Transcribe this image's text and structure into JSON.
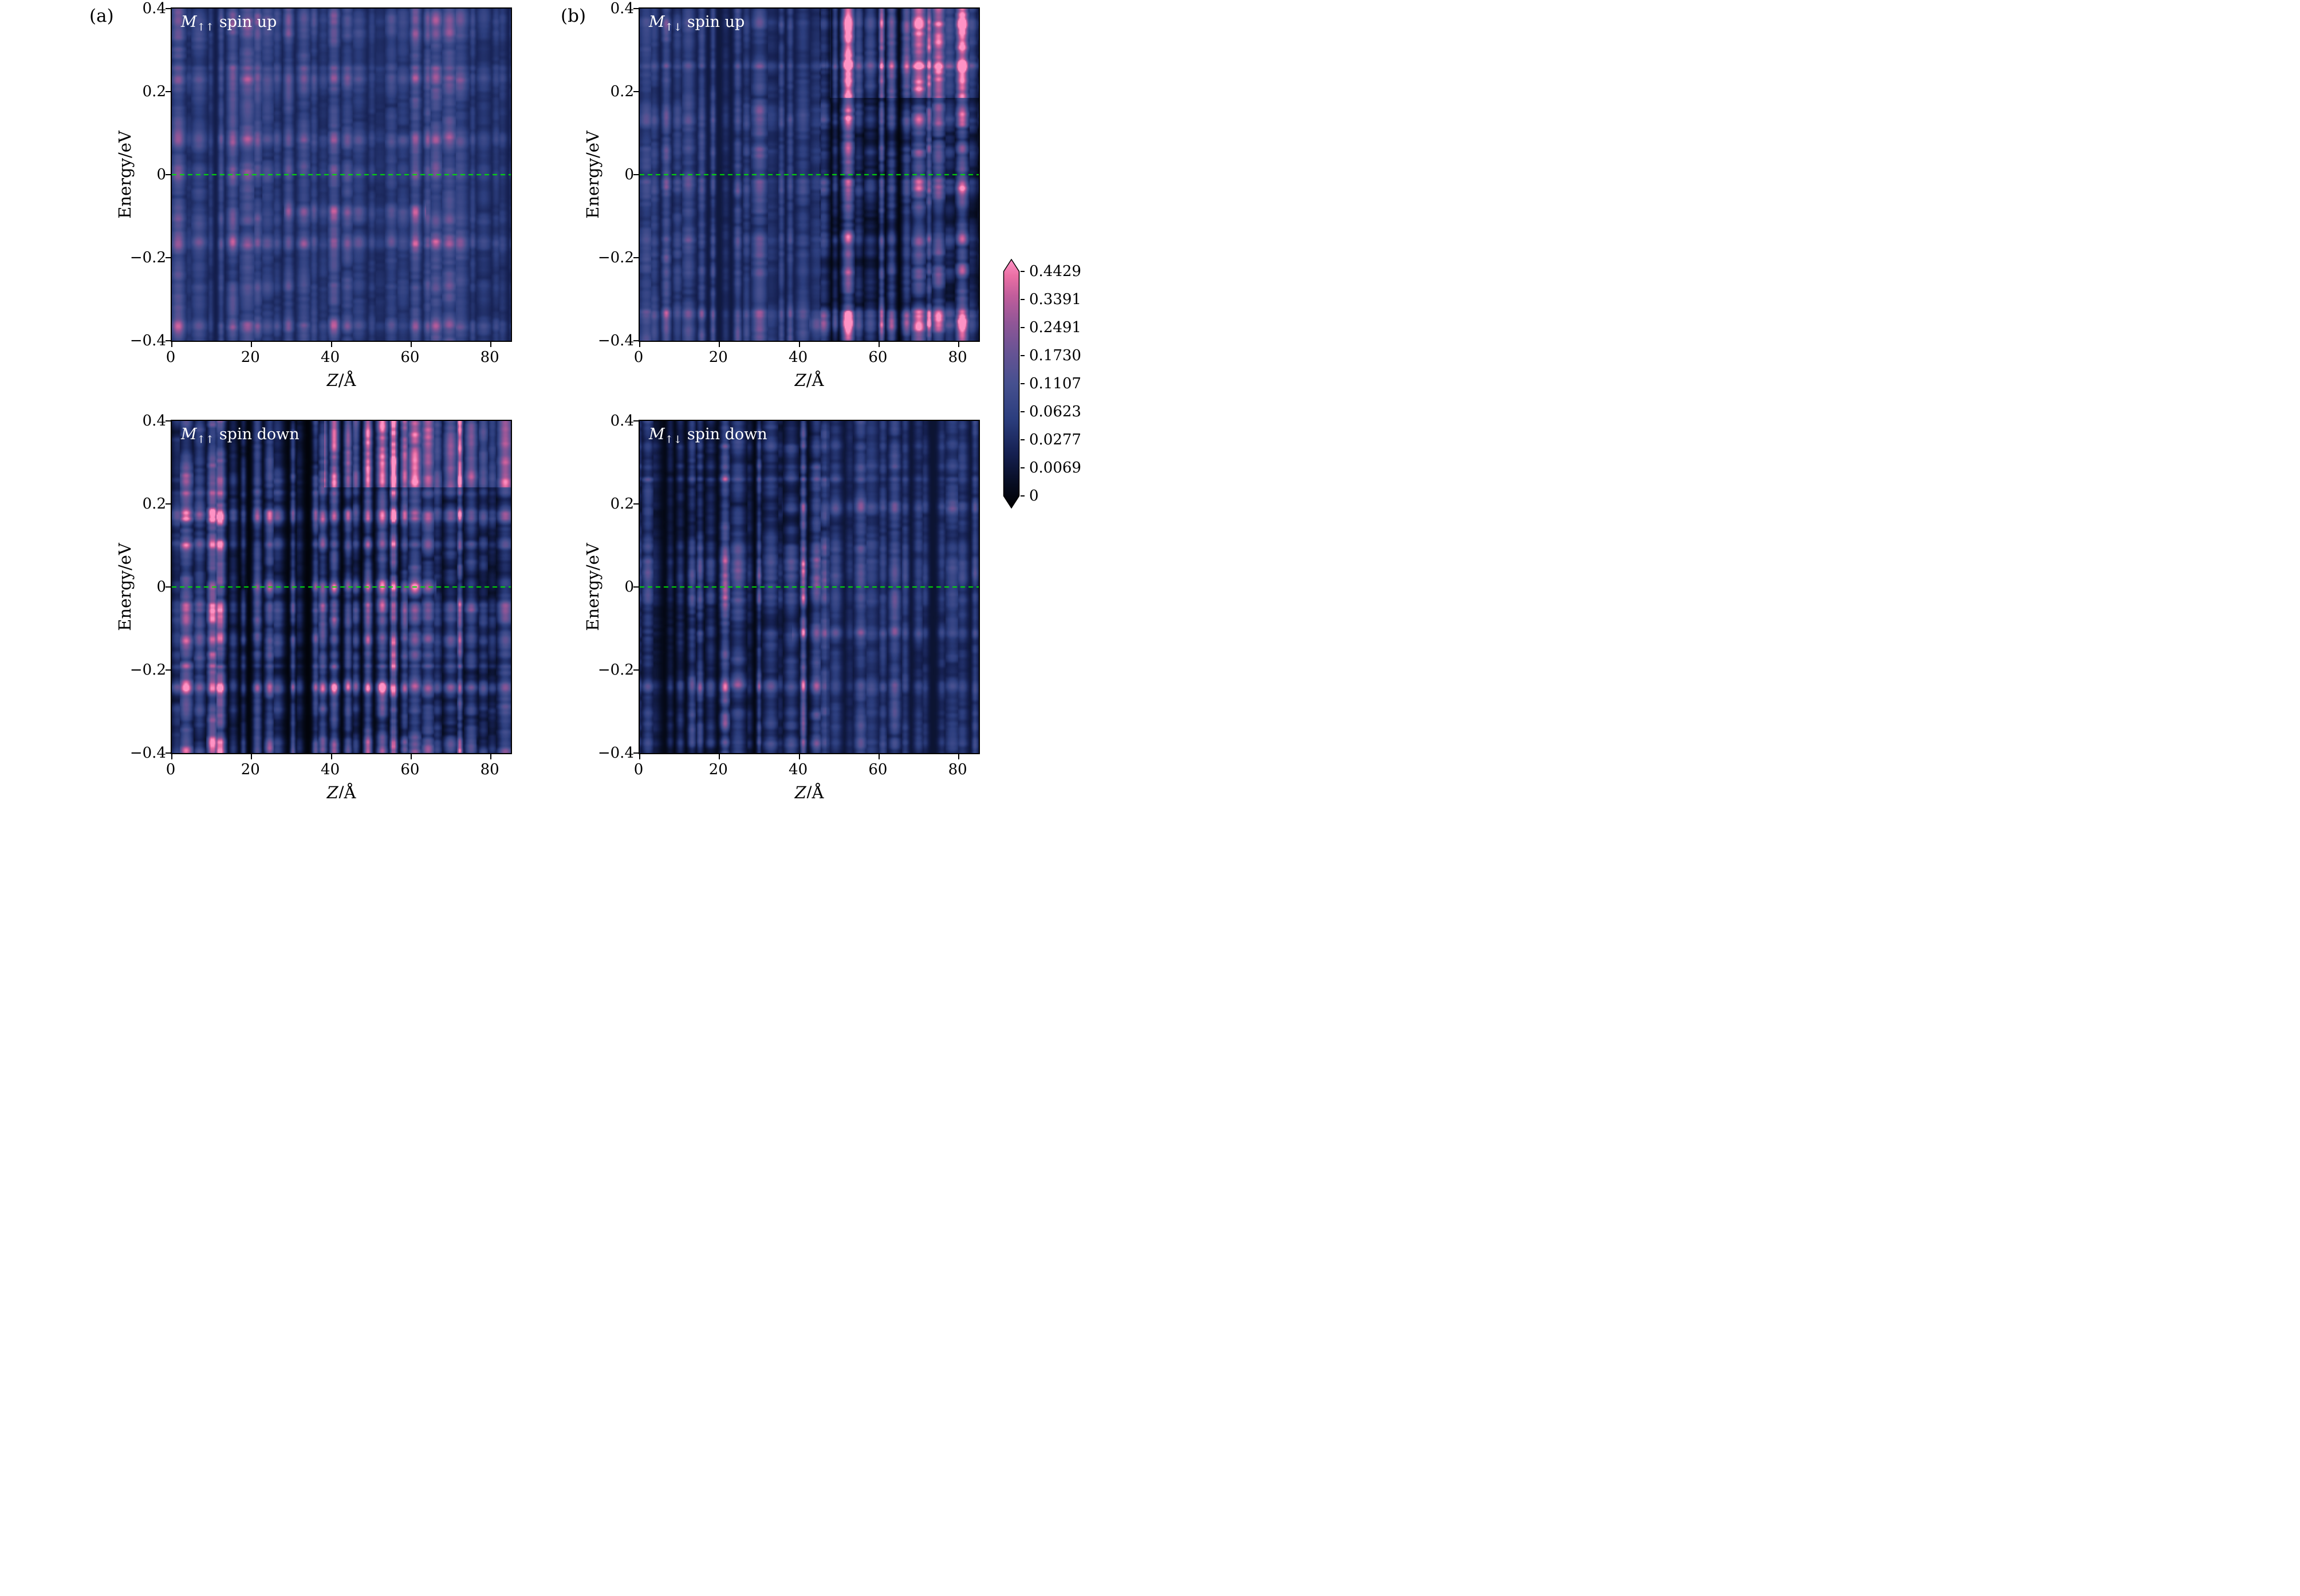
{
  "figure": {
    "label_a": "(a)",
    "label_b": "(b)"
  },
  "axes": {
    "ylabel": "Energy/eV",
    "xlabel_var": "Z",
    "xlabel_rest": "/Å",
    "yticks": [
      "0.4",
      "0.2",
      "0",
      "−0.2",
      "−0.4"
    ],
    "xticks": [
      "0",
      "20",
      "40",
      "60",
      "80"
    ]
  },
  "colorbar": {
    "tick_labels": [
      "0.4429",
      "0.3391",
      "0.2491",
      "0.1730",
      "0.1107",
      "0.0623",
      "0.0277",
      "0.0069",
      "0"
    ]
  },
  "chart_data": {
    "type": "heatmap",
    "x_range": [
      0,
      85
    ],
    "y_range": [
      -0.4,
      0.4
    ],
    "x_ticks": [
      0,
      20,
      40,
      60,
      80
    ],
    "y_ticks": [
      0.4,
      0.2,
      0,
      -0.2,
      -0.4
    ],
    "xlabel": "Z/Å",
    "ylabel": "Energy/eV",
    "grid": false,
    "legend_position": "none",
    "zero_line": {
      "y": 0,
      "color": "#00e600",
      "style": "dashed"
    },
    "colorbar_ticks": [
      0.4429,
      0.3391,
      0.2491,
      0.173,
      0.1107,
      0.0623,
      0.0277,
      0.0069,
      0
    ],
    "colormap": [
      [
        0.0,
        "#000000"
      ],
      [
        0.1,
        "#070d22"
      ],
      [
        0.22,
        "#152051"
      ],
      [
        0.36,
        "#2c3e7e"
      ],
      [
        0.5,
        "#46508f"
      ],
      [
        0.62,
        "#655394"
      ],
      [
        0.74,
        "#8f5697"
      ],
      [
        0.85,
        "#c05d9b"
      ],
      [
        0.93,
        "#ea6fa4"
      ],
      [
        1.0,
        "#ff93c5"
      ]
    ],
    "panels": [
      {
        "id": "a-top",
        "title": "M↑↑ spin up",
        "symbol": "M",
        "subscript": "↑↑",
        "title_rest": "spin up",
        "render": {
          "seed": 11,
          "regions": [
            {
              "x0": 0,
              "x1": 1,
              "base": 0.2,
              "amp": 0.42,
              "line": 0.45
            }
          ],
          "rows": [
            {
              "ny": 0.61,
              "amp": 0.38,
              "x0": 0.33,
              "x1": 0.75
            },
            {
              "ny": 0.5,
              "amp": 0.12,
              "x0": 0,
              "x1": 1
            }
          ]
        }
      },
      {
        "id": "b-top",
        "title": "M↑↓ spin up",
        "symbol": "M",
        "subscript": "↑↓",
        "title_rest": "spin up",
        "render": {
          "seed": 23,
          "regions": [
            {
              "x0": 0,
              "x1": 0.53,
              "base": 0.17,
              "amp": 0.45,
              "line": 0.45
            },
            {
              "x0": 0.53,
              "x1": 1,
              "base": 0.015,
              "amp": 0.85,
              "line": 0.9
            }
          ],
          "band": {
            "x0": 0.56,
            "y1": 0.27,
            "amp": 0.5
          },
          "rows": [
            {
              "ny": 0.95,
              "amp": 0.6,
              "x0": 0.5,
              "x1": 1
            },
            {
              "ny": 0.17,
              "amp": 0.18,
              "x0": 0.55,
              "x1": 1
            }
          ]
        }
      },
      {
        "id": "a-bottom",
        "title": "M↑↑ spin down",
        "symbol": "M",
        "subscript": "↑↑",
        "title_rest": "spin down",
        "render": {
          "seed": 37,
          "regions": [
            {
              "x0": 0,
              "x1": 1,
              "base": 0.03,
              "amp": 0.75,
              "line": 0.8
            }
          ],
          "band": {
            "x0": 0.45,
            "y1": 0.2,
            "amp": 0.5
          },
          "rows": [
            {
              "ny": 0.5,
              "amp": 0.6,
              "x0": 0.22,
              "x1": 0.78
            },
            {
              "ny": 0.8,
              "amp": 0.3,
              "x0": 0.35,
              "x1": 0.65
            },
            {
              "ny": 0.97,
              "amp": 0.35,
              "x0": 0.1,
              "x1": 0.9
            }
          ]
        }
      },
      {
        "id": "b-bottom",
        "title": "M↑↓ spin down",
        "symbol": "M",
        "subscript": "↑↓",
        "title_rest": "spin down",
        "render": {
          "seed": 53,
          "regions": [
            {
              "x0": 0,
              "x1": 0.55,
              "base": 0.05,
              "amp": 0.7,
              "line": 0.7
            },
            {
              "x0": 0.55,
              "x1": 1,
              "base": 0.14,
              "amp": 0.42,
              "line": 0.35
            }
          ],
          "rows": [
            {
              "ny": 0.26,
              "amp": 0.3,
              "x0": 0.42,
              "x1": 1
            },
            {
              "ny": 0.64,
              "amp": 0.25,
              "x0": 0.45,
              "x1": 1
            },
            {
              "ny": 0.5,
              "amp": 0.18,
              "x0": 0,
              "x1": 0.55
            }
          ]
        }
      }
    ]
  }
}
